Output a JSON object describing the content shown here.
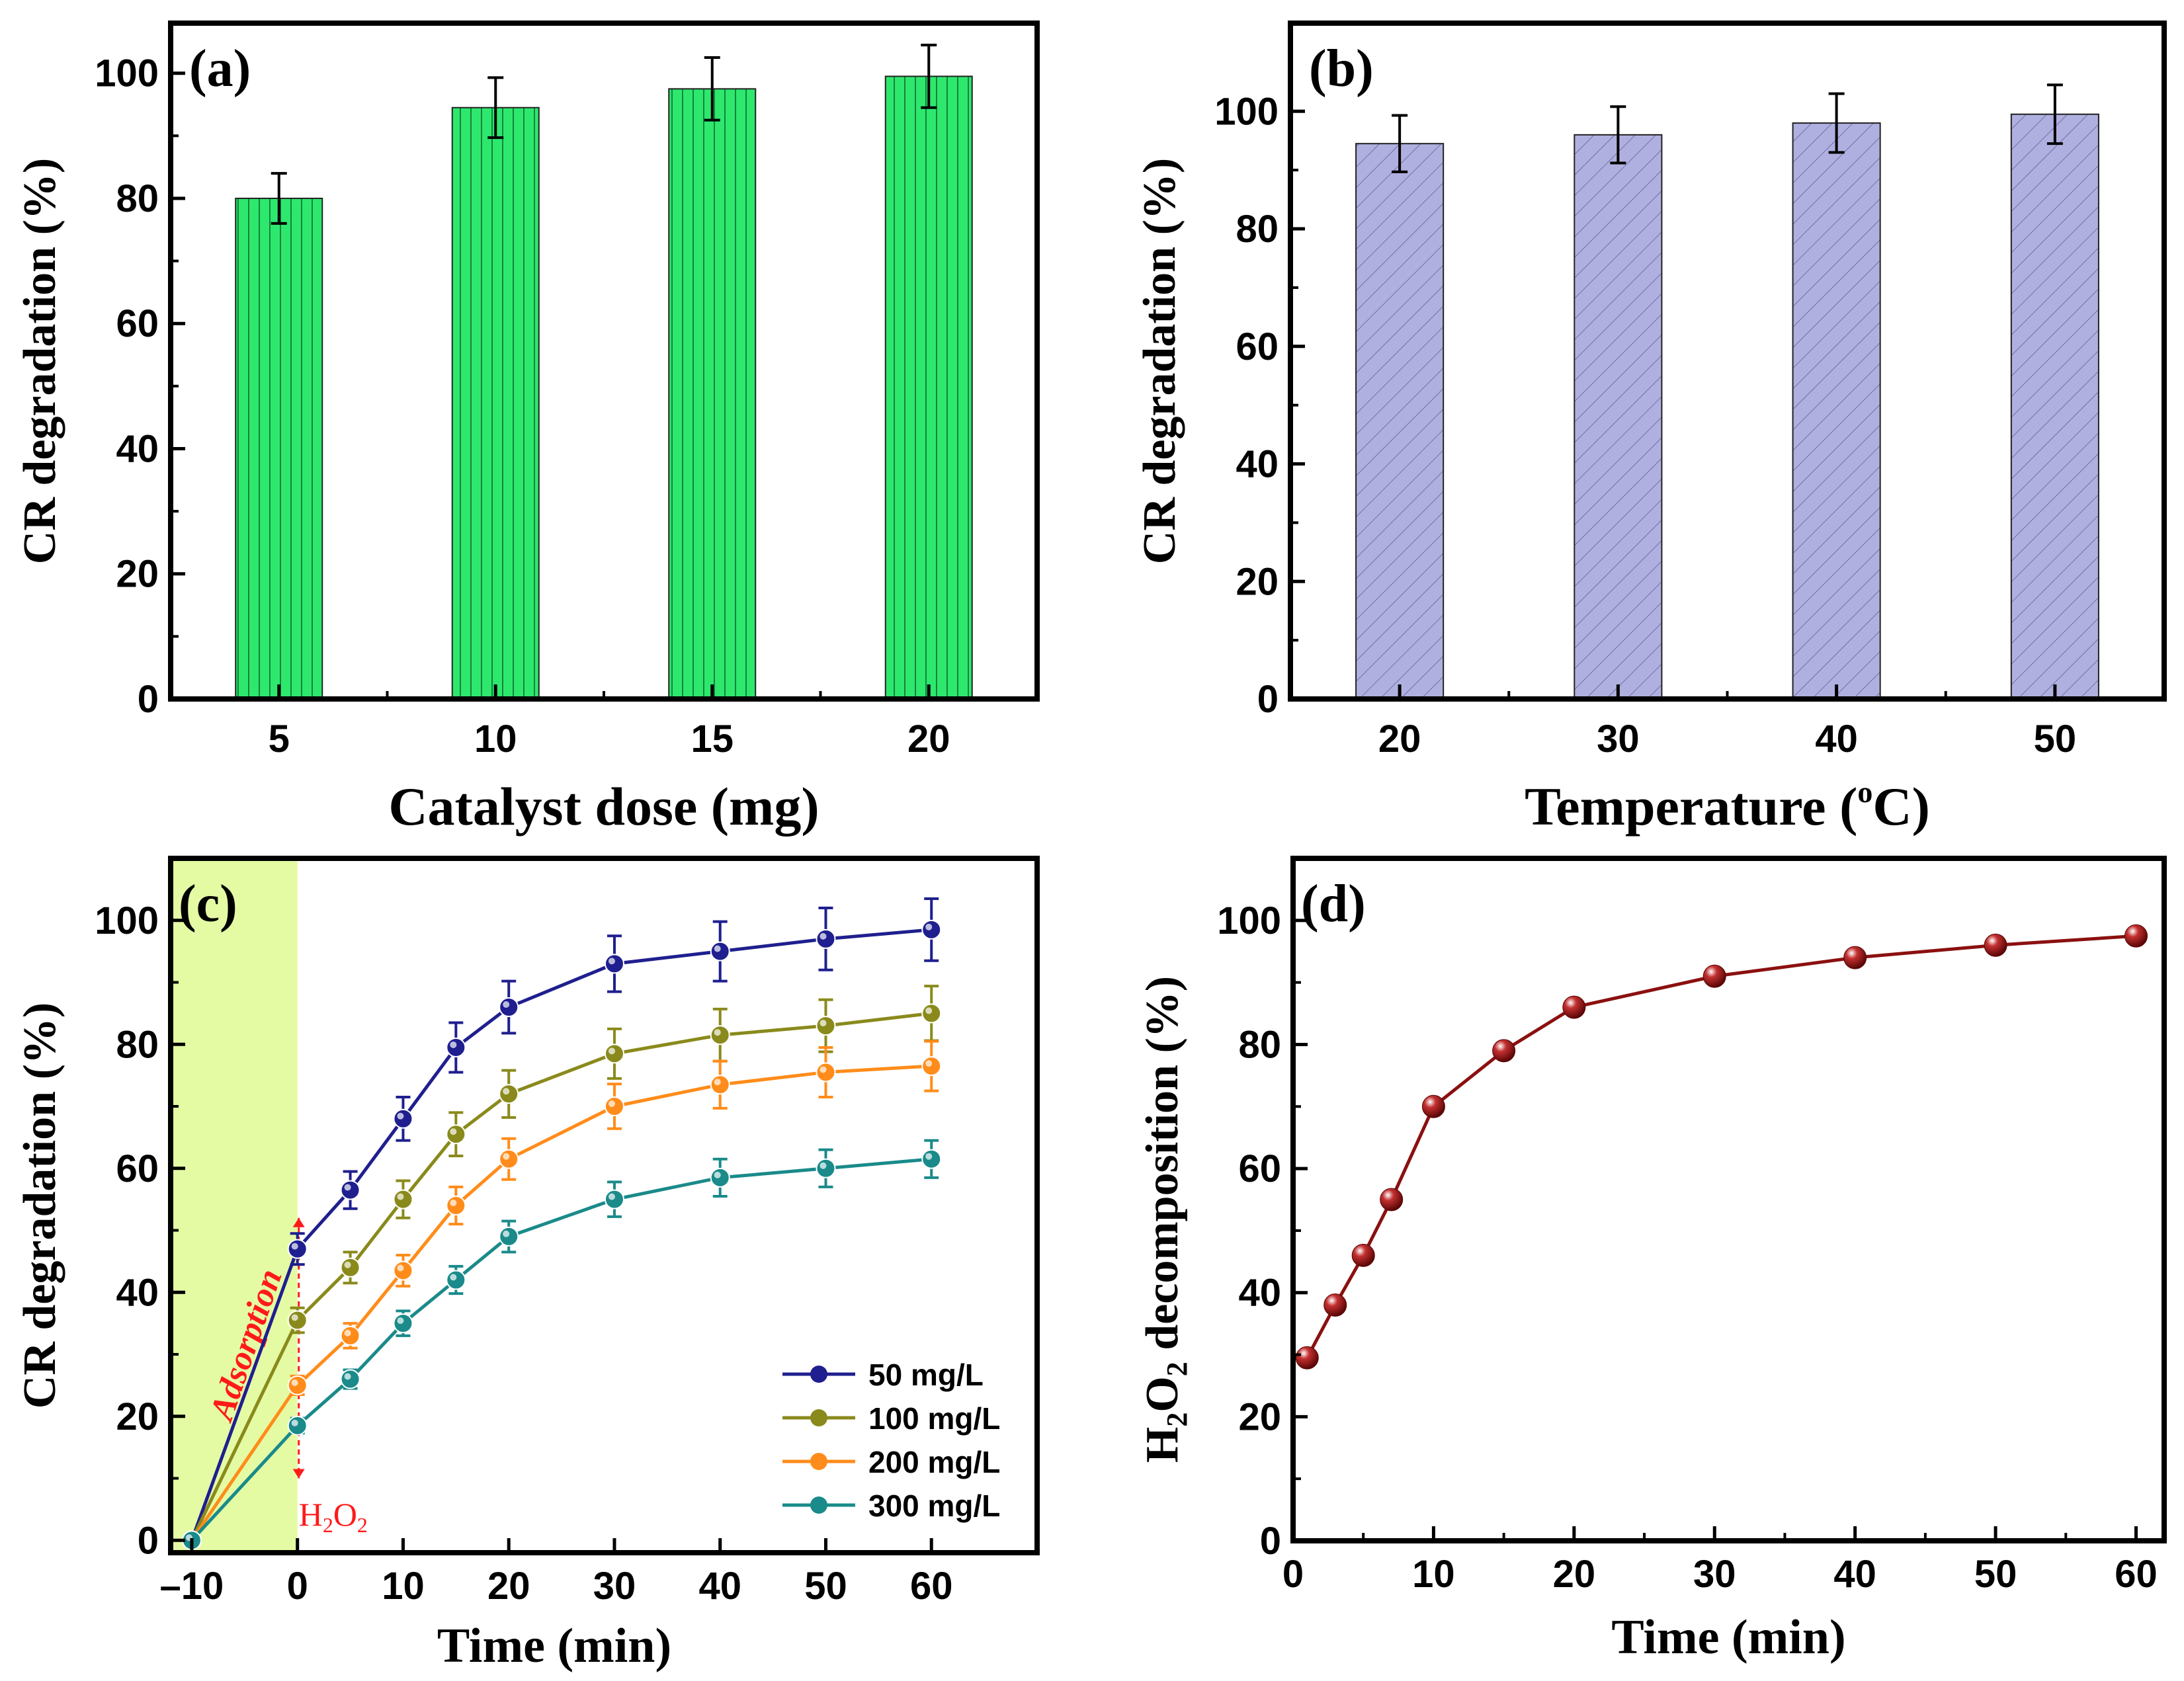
{
  "chart_data": [
    {
      "id": "a",
      "panel_label": "(a)",
      "type": "bar",
      "xlabel": "Catalyst dose (mg)",
      "ylabel": "CR degradation (%)",
      "categories": [
        "5",
        "10",
        "15",
        "20"
      ],
      "values": [
        80,
        94.5,
        97.5,
        99.5
      ],
      "errors": [
        4,
        4.8,
        5,
        5
      ],
      "ylim": [
        0,
        108
      ],
      "yticks": [
        0,
        20,
        40,
        60,
        80,
        100
      ],
      "colors": {
        "fill": "#2ee86e",
        "stripe": "#0b6b2e"
      }
    },
    {
      "id": "b",
      "panel_label": "(b)",
      "type": "bar",
      "xlabel": "Temperature (",
      "xlabel_sup": "o",
      "xlabel_end": "C)",
      "ylabel": "CR degradation (%)",
      "categories": [
        "20",
        "30",
        "40",
        "50"
      ],
      "values": [
        94.5,
        96,
        98,
        99.5
      ],
      "errors": [
        4.8,
        4.8,
        5,
        5
      ],
      "ylim": [
        0,
        115
      ],
      "yticks": [
        0,
        20,
        40,
        60,
        80,
        100
      ],
      "colors": {
        "fill": "#b0b0e0",
        "stripe": "#6f6fa8"
      }
    },
    {
      "id": "c",
      "panel_label": "(c)",
      "type": "line",
      "xlabel": "Time (min)",
      "ylabel": "CR degradation (%)",
      "xlim": [
        -12,
        70
      ],
      "ylim": [
        -2,
        110
      ],
      "xticks": [
        -10,
        0,
        10,
        20,
        30,
        40,
        50,
        60
      ],
      "xtick_labels": [
        "–10",
        "0",
        "10",
        "20",
        "30",
        "40",
        "50",
        "60"
      ],
      "yticks": [
        0,
        20,
        40,
        60,
        80,
        100
      ],
      "x": [
        -10,
        0,
        5,
        10,
        15,
        20,
        30,
        40,
        50,
        60
      ],
      "series": [
        {
          "name": "50 mg/L",
          "color": "#1f1f8f",
          "values": [
            0,
            47,
            56.5,
            68,
            79.5,
            86,
            93,
            95,
            97,
            98.5
          ],
          "errors": [
            0,
            2.5,
            3,
            3.5,
            4,
            4.2,
            4.5,
            4.8,
            5,
            5
          ]
        },
        {
          "name": "100 mg/L",
          "color": "#8a8a1c",
          "values": [
            0,
            35.5,
            44,
            55,
            65.5,
            72,
            78.5,
            81.5,
            83,
            85
          ],
          "errors": [
            0,
            2,
            2.5,
            3,
            3.5,
            3.8,
            4,
            4.2,
            4.2,
            4.4
          ]
        },
        {
          "name": "200 mg/L",
          "color": "#ff8c1a",
          "values": [
            0,
            25,
            33,
            43.5,
            54,
            61.5,
            70,
            73.5,
            75.5,
            76.5
          ],
          "errors": [
            0,
            1.5,
            2,
            2.5,
            3,
            3.3,
            3.6,
            3.8,
            4,
            4
          ]
        },
        {
          "name": "300 mg/L",
          "color": "#1a8a8a",
          "values": [
            0,
            18.5,
            26,
            35,
            42,
            49,
            55,
            58.5,
            60,
            61.5
          ],
          "errors": [
            0,
            1.2,
            1.5,
            2,
            2.2,
            2.5,
            2.8,
            3,
            3,
            3
          ]
        }
      ],
      "shaded_region": {
        "from": -10,
        "to": 0,
        "color": "#e4fba4"
      },
      "annotations": {
        "adsorption": "Adsorption",
        "h2o2": "H",
        "h2o2_sub1": "2",
        "h2o2_mid": "O",
        "h2o2_sub2": "2",
        "color": "#ff1a1a"
      }
    },
    {
      "id": "d",
      "panel_label": "(d)",
      "type": "line",
      "xlabel": "Time (min)",
      "ylabel": "H",
      "ylabel_sub": "2",
      "ylabel_rest": "O",
      "ylabel_sub2": "2",
      "ylabel_end": " decomposition (%)",
      "xlim": [
        0,
        62
      ],
      "ylim": [
        0,
        110
      ],
      "xticks": [
        0,
        10,
        20,
        30,
        40,
        50,
        60
      ],
      "yticks": [
        0,
        20,
        40,
        60,
        80,
        100
      ],
      "x": [
        1,
        3,
        5,
        7,
        10,
        15,
        20,
        30,
        40,
        50,
        60
      ],
      "series": [
        {
          "name": "H2O2",
          "color": "#8b1010",
          "values": [
            29.5,
            38,
            46,
            55,
            70,
            79,
            86,
            91,
            94,
            96,
            97.5
          ]
        }
      ]
    }
  ]
}
